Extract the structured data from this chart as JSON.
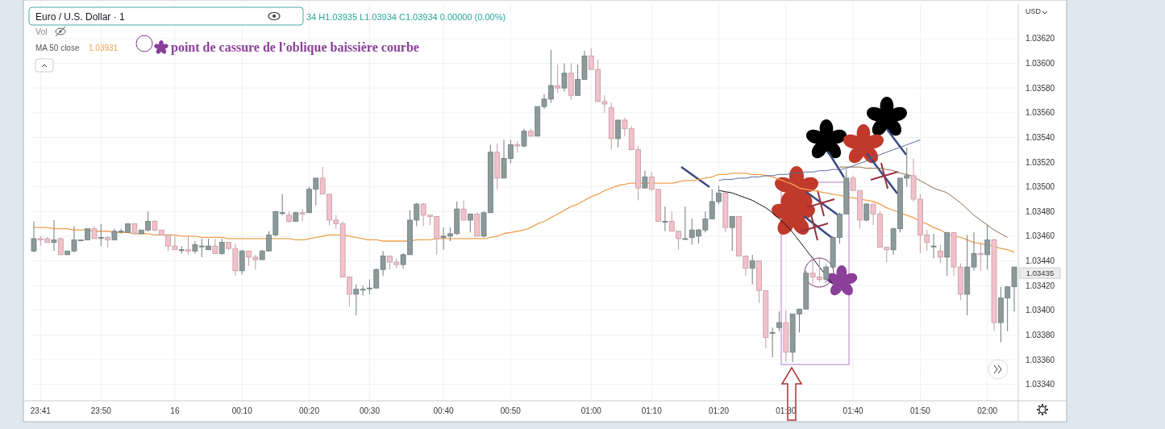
{
  "chart_data": {
    "type": "candlestick",
    "title": "Euro / U.S. Dollar · 1",
    "ylabel": "USD",
    "legend": "top left",
    "grid": true,
    "categories": [
      null,
      "23:41",
      null,
      null,
      null,
      null,
      null,
      null,
      null,
      null,
      "23:50",
      null,
      null,
      null,
      null,
      null,
      null,
      null,
      null,
      null,
      null,
      "16",
      null,
      null,
      null,
      null,
      null,
      null,
      null,
      null,
      null,
      "00:10",
      null,
      null,
      null,
      null,
      null,
      null,
      null,
      null,
      null,
      "00:20",
      null,
      null,
      null,
      null,
      null,
      null,
      null,
      null,
      "00:30",
      null,
      null,
      null,
      null,
      null,
      null,
      null,
      null,
      null,
      null,
      "00:40",
      null,
      null,
      null,
      null,
      null,
      null,
      null,
      null,
      null,
      "00:50",
      null,
      null,
      null,
      null,
      null,
      null,
      null,
      null,
      null,
      null,
      null,
      "01:00",
      null,
      null,
      null,
      null,
      null,
      null,
      null,
      null,
      "01:10",
      null,
      null,
      null,
      null,
      null,
      null,
      null,
      null,
      null,
      "01:20",
      null,
      null,
      null,
      null,
      null,
      null,
      null,
      null,
      null,
      "01:30",
      null,
      null,
      null,
      null,
      null,
      null,
      null,
      null,
      null,
      "01:40",
      null,
      null,
      null,
      null,
      null,
      null,
      null,
      null,
      null,
      "01:50",
      null,
      null,
      null,
      null,
      null,
      null,
      null,
      null,
      null,
      "02:00",
      null,
      null,
      null,
      null
    ],
    "ylim": [
      1.03328,
      1.03648
    ],
    "yticks": [
      {
        "value": 1.0334,
        "label": "1.03340"
      },
      {
        "value": 1.0336,
        "label": "1.03360"
      },
      {
        "value": 1.0338,
        "label": "1.03380"
      },
      {
        "value": 1.034,
        "label": "1.03400"
      },
      {
        "value": 1.0342,
        "label": "1.03420"
      },
      {
        "value": 1.0344,
        "label": "1.03440"
      },
      {
        "value": 1.0346,
        "label": "1.03460"
      },
      {
        "value": 1.0348,
        "label": "1.03480"
      },
      {
        "value": 1.035,
        "label": "1.03500"
      },
      {
        "value": 1.0352,
        "label": "1.03520"
      },
      {
        "value": 1.0354,
        "label": "1.03540"
      },
      {
        "value": 1.0356,
        "label": "1.03560"
      },
      {
        "value": 1.0358,
        "label": "1.03580"
      },
      {
        "value": 1.036,
        "label": "1.03600"
      },
      {
        "value": 1.0362,
        "label": "1.03620"
      }
    ],
    "annotations": [
      "34 H1.03935 L1.03934 C1.03934 0.00000 (0.00%)",
      "Vol",
      "1.03931",
      "point de cassure de l'oblique baissière courbe",
      "1.03435"
    ],
    "series": [
      {
        "colors": [
          "#8c9a9a",
          "#f2c1ca",
          "#f2c1ca",
          "#8c9a9a",
          "#f2c1ca",
          "#8c9a9a",
          "#8c9a9a",
          "#8c9a9a",
          "#8c9a9a",
          "#f2c1ca",
          "#8c9a9a",
          "#f2c1ca",
          "#8c9a9a",
          "#8c9a9a",
          "#8c9a9a",
          "#f2c1ca",
          "#8c9a9a",
          "#8c9a9a",
          "#f2c1ca",
          "#f2c1ca",
          "#f2c1ca",
          "#f2c1ca",
          "#8c9a9a",
          "#f2c1ca",
          "#8c9a9a",
          "#8c9a9a",
          "#8c9a9a",
          "#f2c1ca",
          "#8c9a9a",
          "#f2c1ca",
          "#f2c1ca",
          "#8c9a9a",
          "#f2c1ca",
          "#f2c1ca",
          "#8c9a9a",
          "#8c9a9a",
          "#8c9a9a",
          "#8c9a9a",
          "#f2c1ca",
          "#8c9a9a",
          "#f2c1ca",
          "#8c9a9a",
          "#8c9a9a",
          "#f2c1ca",
          "#f2c1ca",
          "#f2c1ca",
          "#f2c1ca",
          "#f2c1ca",
          "#8c9a9a",
          "#8c9a9a",
          "#8c9a9a",
          "#8c9a9a",
          "#8c9a9a",
          "#f2c1ca",
          "#f2c1ca",
          "#8c9a9a",
          "#8c9a9a",
          "#8c9a9a",
          "#f2c1ca",
          "#f2c1ca",
          "#f2c1ca",
          "#8c9a9a",
          "#8c9a9a",
          "#8c9a9a",
          "#f2c1ca",
          "#8c9a9a",
          "#f2c1ca",
          "#8c9a9a",
          "#8c9a9a",
          "#f2c1ca",
          "#8c9a9a",
          "#8c9a9a",
          "#f2c1ca",
          "#8c9a9a",
          "#f2c1ca",
          "#8c9a9a",
          "#8c9a9a",
          "#8c9a9a",
          "#f2c1ca",
          "#8c9a9a",
          "#f2c1ca",
          "#8c9a9a",
          "#8c9a9a",
          "#f2c1ca",
          "#f2c1ca",
          "#f2c1ca",
          "#f2c1ca",
          "#8c9a9a",
          "#f2c1ca",
          "#f2c1ca",
          "#f2c1ca",
          "#8c9a9a",
          "#f2c1ca",
          "#f2c1ca",
          "#8c9a9a",
          "#f2c1ca",
          "#f2c1ca",
          "#8c9a9a",
          "#8c9a9a",
          "#8c9a9a",
          "#8c9a9a",
          "#8c9a9a",
          "#8c9a9a",
          "#f2c1ca",
          "#8c9a9a",
          "#f2c1ca",
          "#f2c1ca",
          "#8c9a9a",
          "#f2c1ca",
          "#f2c1ca",
          "#8c9a9a",
          "#8c9a9a",
          "#f2c1ca",
          "#8c9a9a",
          "#8c9a9a",
          "#8c9a9a",
          "#f2c1ca",
          "#f2c1ca",
          "#8c9a9a",
          "#8c9a9a",
          "#8c9a9a",
          "#8c9a9a",
          "#f2c1ca",
          "#f2c1ca",
          "#8c9a9a",
          "#f2c1ca",
          "#f2c1ca",
          "#f2c1ca",
          "#8c9a9a",
          "#8c9a9a",
          "#8c9a9a",
          "#f2c1ca",
          "#f2c1ca",
          "#f2c1ca",
          "#8c9a9a",
          "#f2c1ca",
          "#8c9a9a",
          "#f2c1ca",
          "#f2c1ca",
          "#8c9a9a",
          "#8c9a9a",
          "#f2c1ca",
          "#8c9a9a",
          "#f2c1ca",
          "#8c9a9a",
          "#8c9a9a",
          "#8c9a9a"
        ],
        "ohlc": [
          [
            1.03448,
            1.03472,
            1.03447,
            1.03458
          ],
          [
            1.03458,
            1.0346,
            1.03452,
            1.03457
          ],
          [
            1.03458,
            1.03459,
            1.03455,
            1.03455
          ],
          [
            1.03455,
            1.03473,
            1.03448,
            1.03457
          ],
          [
            1.03458,
            1.03459,
            1.03445,
            1.03445
          ],
          [
            1.03445,
            1.03448,
            1.03445,
            1.03448
          ],
          [
            1.03448,
            1.03468,
            1.03447,
            1.03457
          ],
          [
            1.03457,
            1.03457,
            1.03456,
            1.03457
          ],
          [
            1.03457,
            1.03466,
            1.03457,
            1.03466
          ],
          [
            1.03466,
            1.03468,
            1.03458,
            1.03458
          ],
          [
            1.03459,
            1.0347,
            1.03452,
            1.03459
          ],
          [
            1.03459,
            1.0346,
            1.03451,
            1.03457
          ],
          [
            1.03457,
            1.03466,
            1.03457,
            1.03464
          ],
          [
            1.03464,
            1.03466,
            1.03462,
            1.03464
          ],
          [
            1.03463,
            1.0347,
            1.03463,
            1.0347
          ],
          [
            1.0347,
            1.0347,
            1.03462,
            1.03462
          ],
          [
            1.03462,
            1.03465,
            1.03462,
            1.03465
          ],
          [
            1.03465,
            1.0348,
            1.03464,
            1.03472
          ],
          [
            1.03472,
            1.03473,
            1.03464,
            1.03465
          ],
          [
            1.03465,
            1.03465,
            1.03461,
            1.03461
          ],
          [
            1.03461,
            1.03461,
            1.03448,
            1.03452
          ],
          [
            1.03452,
            1.03461,
            1.03449,
            1.03449
          ],
          [
            1.03449,
            1.03452,
            1.03446,
            1.03449
          ],
          [
            1.03449,
            1.0346,
            1.03445,
            1.03448
          ],
          [
            1.03448,
            1.03456,
            1.03446,
            1.03453
          ],
          [
            1.03452,
            1.03458,
            1.03443,
            1.03452
          ],
          [
            1.03449,
            1.03458,
            1.03449,
            1.03452
          ],
          [
            1.03452,
            1.03458,
            1.03446,
            1.03446
          ],
          [
            1.03446,
            1.03458,
            1.03445,
            1.03455
          ],
          [
            1.03455,
            1.03455,
            1.03449,
            1.0345
          ],
          [
            1.0345,
            1.03454,
            1.03428,
            1.03432
          ],
          [
            1.03432,
            1.03449,
            1.03429,
            1.03448
          ],
          [
            1.03448,
            1.03448,
            1.03436,
            1.03443
          ],
          [
            1.03443,
            1.03445,
            1.03433,
            1.03441
          ],
          [
            1.03441,
            1.03449,
            1.03441,
            1.03448
          ],
          [
            1.03448,
            1.03464,
            1.03448,
            1.03461
          ],
          [
            1.03461,
            1.0348,
            1.0346,
            1.0348
          ],
          [
            1.03479,
            1.03494,
            1.03477,
            1.03479
          ],
          [
            1.03477,
            1.0348,
            1.03471,
            1.03472
          ],
          [
            1.03472,
            1.0348,
            1.03472,
            1.03479
          ],
          [
            1.03479,
            1.03482,
            1.03472,
            1.03478
          ],
          [
            1.03479,
            1.035,
            1.03479,
            1.03498
          ],
          [
            1.03498,
            1.03507,
            1.03485,
            1.03507
          ],
          [
            1.03507,
            1.03516,
            1.03494,
            1.03494
          ],
          [
            1.03494,
            1.03494,
            1.03469,
            1.03473
          ],
          [
            1.03473,
            1.03477,
            1.03466,
            1.0347
          ],
          [
            1.0347,
            1.03472,
            1.03427,
            1.03427
          ],
          [
            1.03427,
            1.03427,
            1.03403,
            1.03413
          ],
          [
            1.03413,
            1.03421,
            1.03396,
            1.03417
          ],
          [
            1.03417,
            1.0342,
            1.03412,
            1.03417
          ],
          [
            1.03418,
            1.03425,
            1.03413,
            1.03418
          ],
          [
            1.03418,
            1.03434,
            1.03418,
            1.03433
          ],
          [
            1.03433,
            1.03448,
            1.03428,
            1.03444
          ],
          [
            1.03444,
            1.03444,
            1.03433,
            1.03439
          ],
          [
            1.03439,
            1.03442,
            1.03434,
            1.03437
          ],
          [
            1.03437,
            1.03446,
            1.03434,
            1.03445
          ],
          [
            1.03445,
            1.03481,
            1.03445,
            1.03473
          ],
          [
            1.03473,
            1.03487,
            1.03468,
            1.03486
          ],
          [
            1.03486,
            1.03487,
            1.03468,
            1.03477
          ],
          [
            1.03477,
            1.03477,
            1.03469,
            1.03476
          ],
          [
            1.03476,
            1.03476,
            1.03445,
            1.03458
          ],
          [
            1.03459,
            1.03467,
            1.03449,
            1.0346
          ],
          [
            1.0346,
            1.03467,
            1.03456,
            1.03462
          ],
          [
            1.03462,
            1.03488,
            1.03461,
            1.03482
          ],
          [
            1.03482,
            1.03489,
            1.03473,
            1.03473
          ],
          [
            1.03473,
            1.03478,
            1.03463,
            1.03478
          ],
          [
            1.03478,
            1.03479,
            1.0346,
            1.0346
          ],
          [
            1.0346,
            1.0348,
            1.03459,
            1.03479
          ],
          [
            1.03479,
            1.03534,
            1.03479,
            1.03528
          ],
          [
            1.03528,
            1.03535,
            1.03498,
            1.03507
          ],
          [
            1.03507,
            1.03538,
            1.03507,
            1.03523
          ],
          [
            1.03523,
            1.03538,
            1.03519,
            1.03534
          ],
          [
            1.03534,
            1.03537,
            1.03528,
            1.03533
          ],
          [
            1.03533,
            1.03547,
            1.03532,
            1.03545
          ],
          [
            1.03545,
            1.03547,
            1.03541,
            1.03541
          ],
          [
            1.03541,
            1.03565,
            1.03541,
            1.03565
          ],
          [
            1.03565,
            1.03575,
            1.03563,
            1.03571
          ],
          [
            1.03571,
            1.03611,
            1.03568,
            1.03582
          ],
          [
            1.03582,
            1.03599,
            1.03576,
            1.0358
          ],
          [
            1.0358,
            1.036,
            1.03577,
            1.03592
          ],
          [
            1.03592,
            1.036,
            1.0357,
            1.03574
          ],
          [
            1.03574,
            1.03599,
            1.03574,
            1.03587
          ],
          [
            1.03587,
            1.0361,
            1.03587,
            1.03606
          ],
          [
            1.03606,
            1.03612,
            1.03595,
            1.03595
          ],
          [
            1.03595,
            1.03603,
            1.03569,
            1.03569
          ],
          [
            1.03569,
            1.03574,
            1.0356,
            1.03567
          ],
          [
            1.03564,
            1.03568,
            1.0353,
            1.03539
          ],
          [
            1.03539,
            1.03554,
            1.03532,
            1.03554
          ],
          [
            1.03554,
            1.03556,
            1.03541,
            1.03547
          ],
          [
            1.03547,
            1.03549,
            1.0353,
            1.0353
          ],
          [
            1.0353,
            1.03533,
            1.03489,
            1.03499
          ],
          [
            1.03499,
            1.03513,
            1.03499,
            1.03508
          ],
          [
            1.03508,
            1.03512,
            1.03497,
            1.03498
          ],
          [
            1.03498,
            1.03498,
            1.03472,
            1.03472
          ],
          [
            1.03472,
            1.03484,
            1.03464,
            1.03472
          ],
          [
            1.03472,
            1.0348,
            1.03464,
            1.03464
          ],
          [
            1.03464,
            1.03464,
            1.03449,
            1.03458
          ],
          [
            1.03458,
            1.03484,
            1.03457,
            1.03458
          ],
          [
            1.03459,
            1.03474,
            1.03453,
            1.03465
          ],
          [
            1.0346,
            1.03466,
            1.03454,
            1.03465
          ],
          [
            1.03465,
            1.0348,
            1.03463,
            1.03474
          ],
          [
            1.03474,
            1.03498,
            1.03474,
            1.03488
          ],
          [
            1.03488,
            1.03501,
            1.03486,
            1.03495
          ],
          [
            1.03495,
            1.03497,
            1.03463,
            1.03467
          ],
          [
            1.03467,
            1.03476,
            1.03448,
            1.03476
          ],
          [
            1.03476,
            1.03476,
            1.03444,
            1.03444
          ],
          [
            1.03444,
            1.03444,
            1.03428,
            1.03434
          ],
          [
            1.03434,
            1.03445,
            1.03421,
            1.0344
          ],
          [
            1.0344,
            1.0344,
            1.03406,
            1.03416
          ],
          [
            1.03416,
            1.03416,
            1.03369,
            1.03378
          ],
          [
            1.03382,
            1.03386,
            1.03362,
            1.03382
          ],
          [
            1.03386,
            1.03399,
            1.03383,
            1.0339
          ],
          [
            1.0339,
            1.034,
            1.03358,
            1.03366
          ],
          [
            1.03366,
            1.03397,
            1.03358,
            1.03397
          ],
          [
            1.03397,
            1.03401,
            1.03382,
            1.03401
          ],
          [
            1.03401,
            1.03432,
            1.03401,
            1.0343
          ],
          [
            1.0343,
            1.03444,
            1.03421,
            1.03427
          ],
          [
            1.03427,
            1.03443,
            1.03423,
            1.03425
          ],
          [
            1.03425,
            1.03437,
            1.03422,
            1.03435
          ],
          [
            1.03435,
            1.0346,
            1.03434,
            1.03459
          ],
          [
            1.03459,
            1.03479,
            1.03454,
            1.03478
          ],
          [
            1.03478,
            1.03514,
            1.03478,
            1.03507
          ],
          [
            1.03507,
            1.03509,
            1.03497,
            1.03497
          ],
          [
            1.03497,
            1.03497,
            1.03466,
            1.03473
          ],
          [
            1.03473,
            1.03487,
            1.03472,
            1.03486
          ],
          [
            1.03486,
            1.03486,
            1.03469,
            1.03478
          ],
          [
            1.03478,
            1.0348,
            1.03451,
            1.03451
          ],
          [
            1.03451,
            1.03451,
            1.03439,
            1.03449
          ],
          [
            1.03449,
            1.03467,
            1.03445,
            1.03466
          ],
          [
            1.03466,
            1.03507,
            1.03463,
            1.03507
          ],
          [
            1.03507,
            1.03532,
            1.035,
            1.03509
          ],
          [
            1.03509,
            1.03523,
            1.03488,
            1.0349
          ],
          [
            1.0349,
            1.03494,
            1.03446,
            1.03461
          ],
          [
            1.03461,
            1.03465,
            1.03448,
            1.03455
          ],
          [
            1.03452,
            1.03462,
            1.03442,
            1.03452
          ],
          [
            1.03448,
            1.03453,
            1.03438,
            1.03443
          ],
          [
            1.03443,
            1.03463,
            1.03428,
            1.03463
          ],
          [
            1.03463,
            1.03463,
            1.03428,
            1.03435
          ],
          [
            1.03435,
            1.03438,
            1.03408,
            1.03413
          ],
          [
            1.03413,
            1.03461,
            1.03396,
            1.03435
          ],
          [
            1.03435,
            1.03463,
            1.03432,
            1.03446
          ],
          [
            1.03446,
            1.03455,
            1.03432,
            1.03445
          ],
          [
            1.03445,
            1.03469,
            1.03433,
            1.03457
          ],
          [
            1.03457,
            1.03458,
            1.03383,
            1.0339
          ],
          [
            1.0339,
            1.03419,
            1.03374,
            1.0341
          ],
          [
            1.0341,
            1.03419,
            1.03383,
            1.03419
          ],
          [
            1.03419,
            1.03435,
            1.03399,
            1.03435
          ]
        ]
      },
      {
        "type": "line",
        "name": "MA 50 close",
        "color": "#f0a050",
        "values": [
          1.03467,
          1.03467,
          1.03467,
          1.03466,
          1.03466,
          1.03466,
          1.03465,
          1.03465,
          1.03465,
          1.03464,
          1.03464,
          1.03464,
          1.03463,
          1.03463,
          1.03463,
          1.03462,
          1.03462,
          1.03462,
          1.03461,
          1.03461,
          1.03461,
          1.03461,
          1.0346,
          1.0346,
          1.0346,
          1.03459,
          1.03459,
          1.03459,
          1.03459,
          1.03458,
          1.03458,
          1.03458,
          1.03458,
          1.03458,
          1.03458,
          1.03458,
          1.03458,
          1.03458,
          1.03458,
          1.03457,
          1.03457,
          1.03458,
          1.03459,
          1.0346,
          1.03461,
          1.03461,
          1.03461,
          1.0346,
          1.03459,
          1.03458,
          1.03457,
          1.03457,
          1.03456,
          1.03456,
          1.03456,
          1.03456,
          1.03456,
          1.03457,
          1.03457,
          1.03457,
          1.03458,
          1.03458,
          1.03458,
          1.03458,
          1.03458,
          1.03458,
          1.03458,
          1.03458,
          1.03459,
          1.0346,
          1.03462,
          1.03463,
          1.03464,
          1.03465,
          1.03467,
          1.0347,
          1.03472,
          1.03475,
          1.03478,
          1.03481,
          1.03484,
          1.03486,
          1.03489,
          1.03492,
          1.03494,
          1.03497,
          1.03499,
          1.03501,
          1.03502,
          1.03503,
          1.03503,
          1.03503,
          1.03503,
          1.03503,
          1.03503,
          1.03503,
          1.03504,
          1.03505,
          1.03505,
          1.03506,
          1.03507,
          1.03508,
          1.0351,
          1.0351,
          1.03511,
          1.03511,
          1.03511,
          1.0351,
          1.0351,
          1.03509,
          1.03508,
          1.03506,
          1.03504,
          1.03502,
          1.03499,
          1.03498,
          1.03497,
          1.03496,
          1.03495,
          1.03494,
          1.03493,
          1.03492,
          1.03491,
          1.0349,
          1.03489,
          1.03488,
          1.03486,
          1.03483,
          1.03481,
          1.03479,
          1.03477,
          1.03475,
          1.03472,
          1.0347,
          1.03467,
          1.03465,
          1.03462,
          1.0346,
          1.03459,
          1.03457,
          1.03455,
          1.03454,
          1.03453,
          1.03452,
          1.0345,
          1.03449,
          1.03447
        ]
      },
      {
        "type": "line",
        "color": "#111111",
        "values": [
          null,
          null,
          null,
          null,
          null,
          null,
          null,
          null,
          null,
          null,
          null,
          null,
          null,
          null,
          null,
          null,
          null,
          null,
          null,
          null,
          null,
          null,
          null,
          null,
          null,
          null,
          null,
          null,
          null,
          null,
          null,
          null,
          null,
          null,
          null,
          null,
          null,
          null,
          null,
          null,
          null,
          null,
          null,
          null,
          null,
          null,
          null,
          null,
          null,
          null,
          null,
          null,
          null,
          null,
          null,
          null,
          null,
          null,
          null,
          null,
          null,
          null,
          null,
          null,
          null,
          null,
          null,
          null,
          null,
          null,
          null,
          null,
          null,
          null,
          null,
          null,
          null,
          null,
          null,
          null,
          null,
          null,
          null,
          null,
          null,
          null,
          null,
          null,
          null,
          null,
          null,
          null,
          null,
          null,
          null,
          null,
          null,
          null,
          null,
          null,
          null,
          null,
          1.03497,
          1.03496,
          1.03495,
          1.03493,
          1.03491,
          1.03489,
          1.03486,
          1.03483,
          1.03479,
          1.03474,
          1.03469,
          1.03463,
          1.03456,
          1.03449,
          1.03442,
          1.03435,
          1.03428,
          1.03421,
          null,
          null,
          null,
          null,
          null,
          null,
          null,
          null,
          null,
          null,
          null,
          null,
          null,
          null,
          null,
          null,
          null,
          null,
          null,
          null,
          null,
          null,
          null,
          null,
          null,
          null,
          null
        ]
      },
      {
        "type": "line",
        "color": "#8b6a50",
        "values": [
          null,
          null,
          null,
          null,
          null,
          null,
          null,
          null,
          null,
          null,
          null,
          null,
          null,
          null,
          null,
          null,
          null,
          null,
          null,
          null,
          null,
          null,
          null,
          null,
          null,
          null,
          null,
          null,
          null,
          null,
          null,
          null,
          null,
          null,
          null,
          null,
          null,
          null,
          null,
          null,
          null,
          null,
          null,
          null,
          null,
          null,
          null,
          null,
          null,
          null,
          null,
          null,
          null,
          null,
          null,
          null,
          null,
          null,
          null,
          null,
          null,
          null,
          null,
          null,
          null,
          null,
          null,
          null,
          null,
          null,
          null,
          null,
          null,
          null,
          null,
          null,
          null,
          null,
          null,
          null,
          null,
          null,
          null,
          null,
          null,
          null,
          null,
          null,
          null,
          null,
          null,
          null,
          null,
          null,
          null,
          null,
          null,
          null,
          null,
          null,
          null,
          null,
          null,
          null,
          null,
          null,
          null,
          null,
          null,
          null,
          null,
          null,
          null,
          null,
          null,
          null,
          null,
          null,
          null,
          null,
          1.03516,
          1.03516,
          1.03516,
          1.03516,
          1.03515,
          1.03515,
          1.03515,
          1.03514,
          1.03513,
          1.03511,
          1.0351,
          1.03508,
          1.03505,
          1.03502,
          1.03499,
          1.03497,
          1.03495,
          1.03491,
          1.03487,
          1.03482,
          1.03477,
          1.03473,
          1.03469,
          1.03465,
          1.03462,
          1.03459,
          null
        ]
      },
      {
        "type": "line",
        "color": "#5a6a9a",
        "values": [
          null,
          null,
          null,
          null,
          null,
          null,
          null,
          null,
          null,
          null,
          null,
          null,
          null,
          null,
          null,
          null,
          null,
          null,
          null,
          null,
          null,
          null,
          null,
          null,
          null,
          null,
          null,
          null,
          null,
          null,
          null,
          null,
          null,
          null,
          null,
          null,
          null,
          null,
          null,
          null,
          null,
          null,
          null,
          null,
          null,
          null,
          null,
          null,
          null,
          null,
          null,
          null,
          null,
          null,
          null,
          null,
          null,
          null,
          null,
          null,
          null,
          null,
          null,
          null,
          null,
          null,
          null,
          null,
          null,
          null,
          null,
          null,
          null,
          null,
          null,
          null,
          null,
          null,
          null,
          null,
          null,
          null,
          null,
          null,
          null,
          null,
          null,
          null,
          null,
          null,
          null,
          null,
          null,
          null,
          null,
          null,
          null,
          null,
          null,
          null,
          null,
          null,
          1.03505,
          1.03506,
          1.03506,
          1.03507,
          1.03507,
          1.03508,
          1.03508,
          1.03509,
          1.03509,
          1.0351,
          1.0351,
          1.03511,
          1.03511,
          1.03512,
          1.03512,
          1.03513,
          1.03513,
          1.03514,
          1.03514,
          1.03515,
          1.03517,
          1.03519,
          1.03521,
          1.03524,
          1.03526,
          1.03528,
          1.0353,
          1.03532,
          1.03534,
          1.03536,
          1.03538,
          null,
          null,
          null,
          null,
          null,
          null,
          null,
          null,
          null,
          null,
          null,
          null,
          null,
          null
        ]
      }
    ]
  }
}
